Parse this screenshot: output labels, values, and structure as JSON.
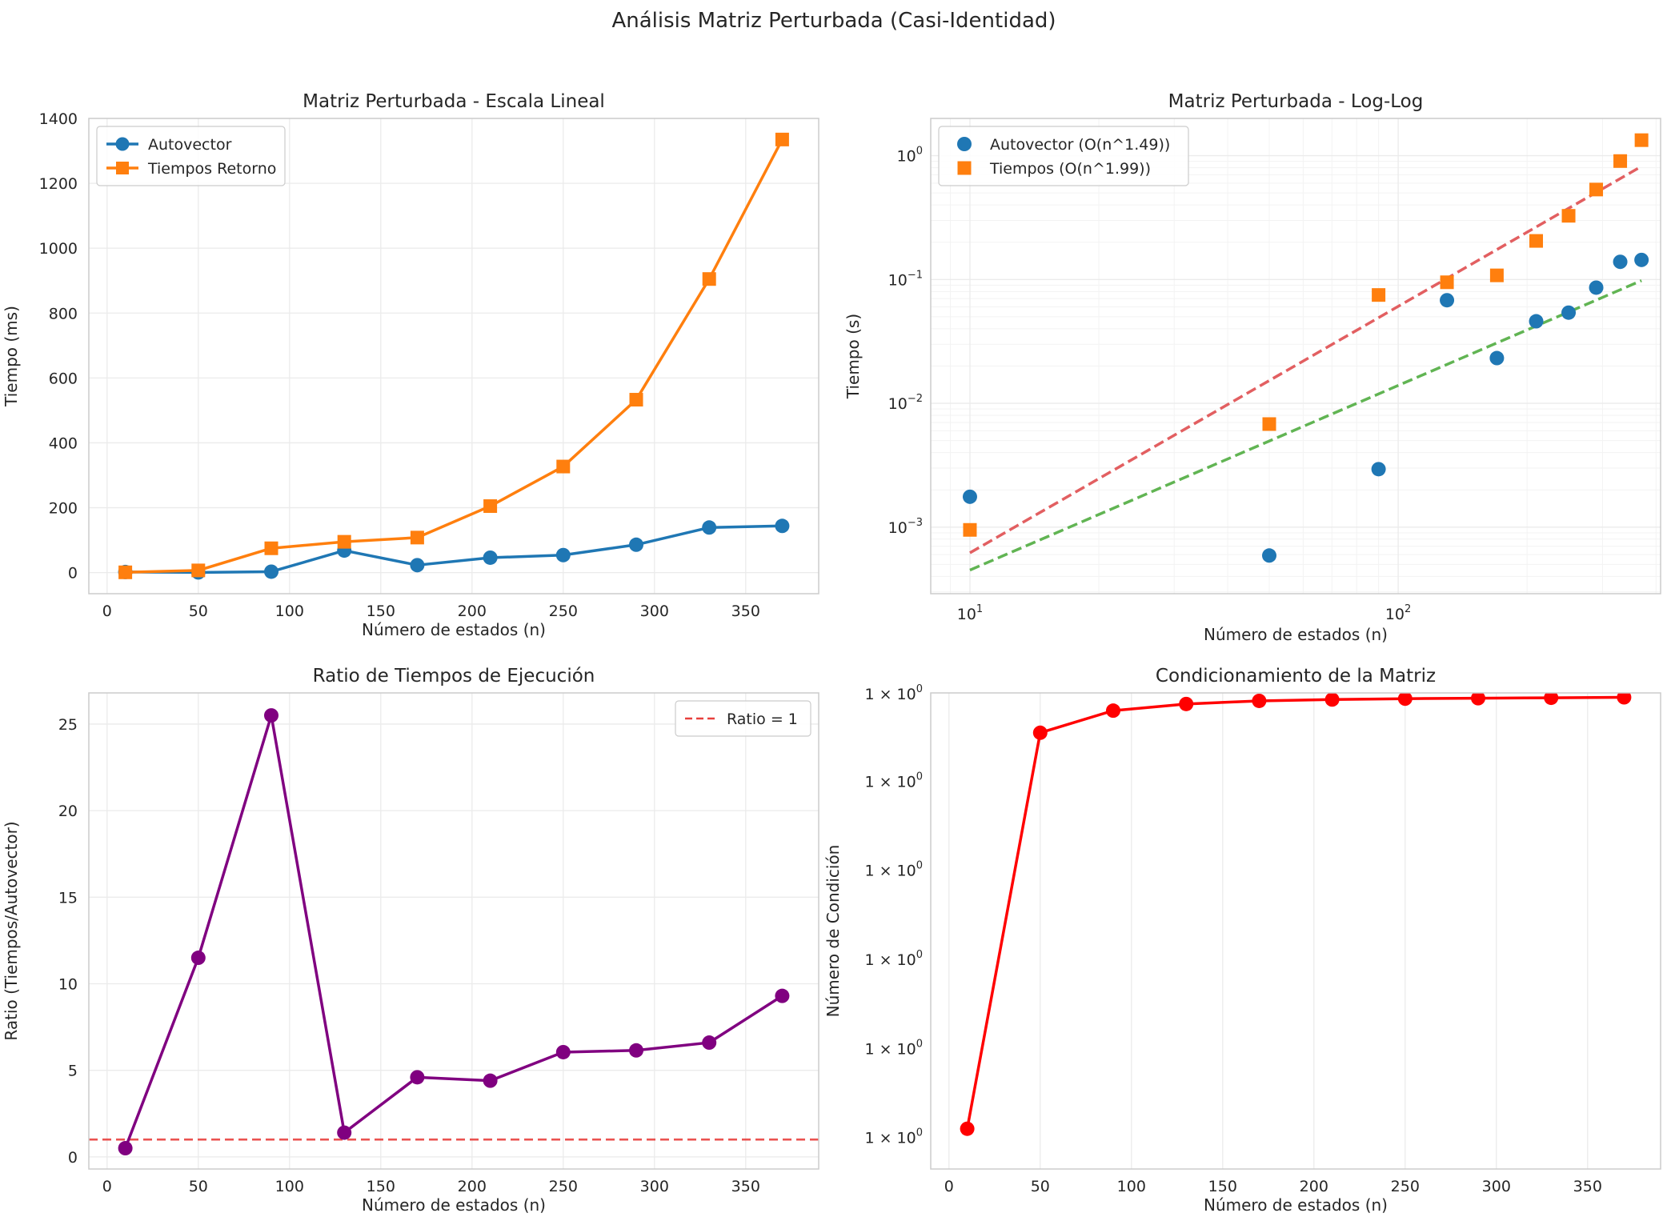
{
  "figure": {
    "suptitle": "Análisis Matriz Perturbada (Casi-Identidad)"
  },
  "chart_data": [
    {
      "id": "lineal",
      "type": "line",
      "title": "Matriz Perturbada - Escala Lineal",
      "xlabel": "Número de estados (n)",
      "ylabel": "Tiempo (ms)",
      "xlim": [
        -10,
        390
      ],
      "ylim": [
        -65,
        1400
      ],
      "xticks": [
        0,
        50,
        100,
        150,
        200,
        250,
        300,
        350
      ],
      "yticks": [
        0,
        200,
        400,
        600,
        800,
        1000,
        1200,
        1400
      ],
      "grid": true,
      "legend": "upper left",
      "x": [
        10,
        50,
        90,
        130,
        170,
        210,
        250,
        290,
        330,
        370
      ],
      "series": [
        {
          "name": "Autovector",
          "color": "#1f77b4",
          "marker": "circle",
          "values": [
            1.8,
            0.6,
            2.9,
            68,
            23,
            46,
            54,
            86,
            139,
            144
          ]
        },
        {
          "name": "Tiempos Retorno",
          "color": "#ff7f0e",
          "marker": "square",
          "values": [
            0.9,
            6.8,
            75,
            95,
            108,
            205,
            327,
            533,
            905,
            1335
          ]
        }
      ]
    },
    {
      "id": "loglog",
      "type": "scatter",
      "title": "Matriz Perturbada - Log-Log",
      "xlabel": "Número de estados (n)",
      "ylabel": "Tiempo (s)",
      "xscale": "log",
      "yscale": "log",
      "xlim": [
        8.1,
        410
      ],
      "ylim": [
        0.00029,
        2.0
      ],
      "xticks": [
        {
          "value": 10,
          "base": "10",
          "exp": "1"
        },
        {
          "value": 100,
          "base": "10",
          "exp": "2"
        }
      ],
      "yticks": [
        {
          "value": 0.001,
          "base": "10",
          "exp": "−3"
        },
        {
          "value": 0.01,
          "base": "10",
          "exp": "−2"
        },
        {
          "value": 0.1,
          "base": "10",
          "exp": "−1"
        },
        {
          "value": 1,
          "base": "10",
          "exp": "0"
        }
      ],
      "grid": true,
      "legend": "upper left",
      "x": [
        10,
        50,
        90,
        130,
        170,
        210,
        250,
        290,
        330,
        370
      ],
      "series": [
        {
          "name": "Autovector (O(n^1.49))",
          "color": "#1f77b4",
          "marker": "circle",
          "values": [
            0.00176,
            0.00059,
            0.00294,
            0.068,
            0.0232,
            0.046,
            0.054,
            0.086,
            0.139,
            0.144
          ]
        },
        {
          "name": "Tiempos (O(n^1.99))",
          "color": "#ff7f0e",
          "marker": "square",
          "values": [
            0.00095,
            0.0068,
            0.075,
            0.095,
            0.108,
            0.205,
            0.327,
            0.533,
            0.905,
            1.335
          ]
        }
      ],
      "fits": [
        {
          "color": "#e15759",
          "x": [
            10,
            370
          ],
          "y": [
            0.00062,
            0.82
          ]
        },
        {
          "color": "#59b14a",
          "x": [
            10,
            370
          ],
          "y": [
            0.00045,
            0.098
          ]
        }
      ]
    },
    {
      "id": "ratio",
      "type": "line",
      "title": "Ratio de Tiempos de Ejecución",
      "xlabel": "Número de estados (n)",
      "ylabel": "Ratio (Tiempos/Autovector)",
      "xlim": [
        -10,
        390
      ],
      "ylim": [
        -0.7,
        26.8
      ],
      "xticks": [
        0,
        50,
        100,
        150,
        200,
        250,
        300,
        350
      ],
      "yticks": [
        0,
        5,
        10,
        15,
        20,
        25
      ],
      "grid": true,
      "legend": "upper right",
      "x": [
        10,
        50,
        90,
        130,
        170,
        210,
        250,
        290,
        330,
        370
      ],
      "series": [
        {
          "name": "",
          "color": "#800080",
          "marker": "circle",
          "values": [
            0.5,
            11.5,
            25.5,
            1.4,
            4.6,
            4.4,
            6.05,
            6.15,
            6.6,
            9.3
          ]
        }
      ],
      "hline": {
        "name": "Ratio = 1",
        "value": 1,
        "color": "#e8403e"
      }
    },
    {
      "id": "condicion",
      "type": "line",
      "title": "Condicionamiento de la Matriz",
      "xlabel": "Número de estados (n)",
      "ylabel": "Número de Condición",
      "yscale": "log",
      "xlim": [
        -10,
        390
      ],
      "ylim": [
        0.9993,
        1.01
      ],
      "xticks": [
        0,
        50,
        100,
        150,
        200,
        250,
        300,
        350
      ],
      "ytick_positions": [
        1.00001,
        1.002,
        1.004,
        1.006,
        1.008,
        1.00998
      ],
      "ytick_text": {
        "pre": "1 × 10",
        "exp": "0"
      },
      "grid": true,
      "legend": "none",
      "x": [
        10,
        50,
        90,
        130,
        170,
        210,
        250,
        290,
        330,
        370
      ],
      "series": [
        {
          "name": "",
          "color": "#ff0000",
          "marker": "circle",
          "values": [
            1.0002,
            1.0091,
            1.0096,
            1.00975,
            1.00982,
            1.00985,
            1.00987,
            1.00988,
            1.00989,
            1.0099
          ]
        }
      ]
    }
  ]
}
